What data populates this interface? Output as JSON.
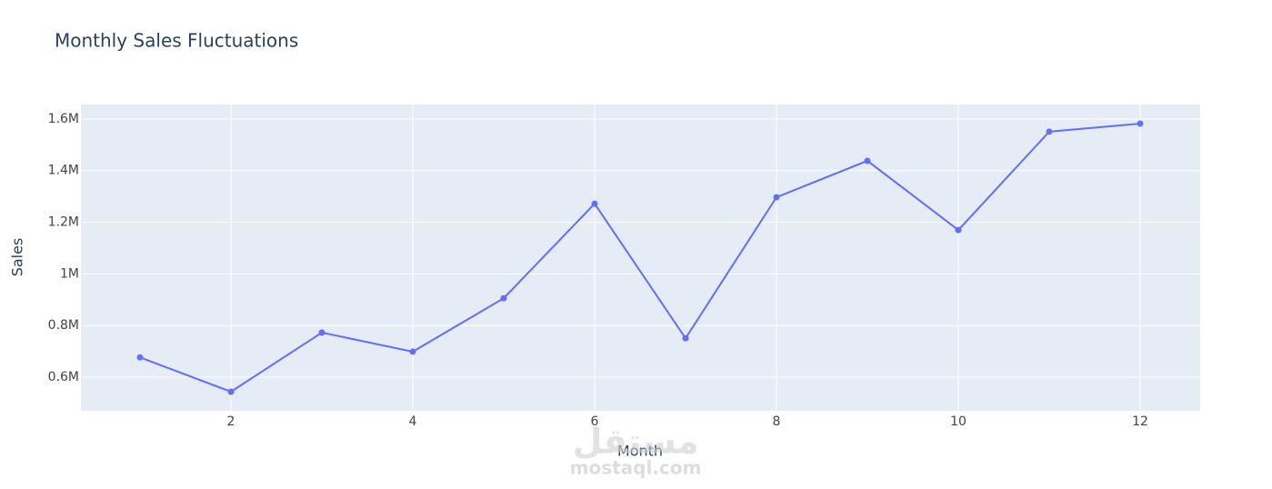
{
  "chart_data": {
    "type": "line",
    "title": "Monthly Sales Fluctuations",
    "x_label": "Month",
    "y_label": "Sales",
    "x": [
      1,
      2,
      3,
      4,
      5,
      6,
      7,
      8,
      9,
      10,
      11,
      12
    ],
    "series": [
      {
        "name": "Sales",
        "color": "#636efa",
        "values": [
          677000,
          544000,
          773000,
          699000,
          906000,
          1272000,
          751000,
          1297000,
          1438000,
          1170000,
          1551000,
          1582000
        ]
      }
    ],
    "xlim": [
      0.35,
      12.66
    ],
    "xticks": [
      2,
      4,
      6,
      8,
      10,
      12
    ],
    "ylim": [
      470000,
      1656000
    ],
    "yticks": [
      {
        "value": 600000,
        "label": "0.6M"
      },
      {
        "value": 800000,
        "label": "0.8M"
      },
      {
        "value": 1000000,
        "label": "1M"
      },
      {
        "value": 1200000,
        "label": "1.2M"
      },
      {
        "value": 1400000,
        "label": "1.4M"
      },
      {
        "value": 1600000,
        "label": "1.6M"
      }
    ],
    "grid": true
  },
  "watermark": {
    "arabic": "مستقل",
    "latin": "mostaql.com"
  }
}
